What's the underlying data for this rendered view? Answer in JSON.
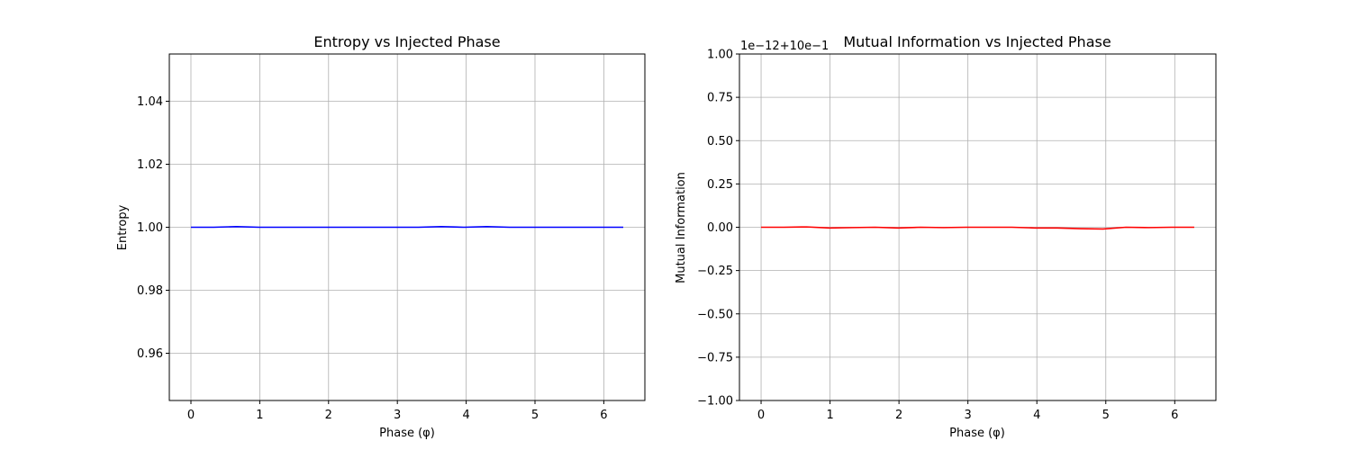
{
  "chart_data": [
    {
      "type": "line",
      "title": "Entropy vs Injected Phase",
      "xlabel": "Phase (φ)",
      "ylabel": "Entropy",
      "xlim": [
        -0.314,
        6.597
      ],
      "ylim": [
        0.945,
        1.055
      ],
      "xticks": [
        0,
        1,
        2,
        3,
        4,
        5,
        6
      ],
      "xtick_labels": [
        "0",
        "1",
        "2",
        "3",
        "4",
        "5",
        "6"
      ],
      "yticks": [
        0.96,
        0.98,
        1.0,
        1.02,
        1.04
      ],
      "ytick_labels": [
        "0.96",
        "0.98",
        "1.00",
        "1.02",
        "1.04"
      ],
      "offset_text": "",
      "grid": true,
      "series": [
        {
          "color": "#0000ff",
          "x": [
            0,
            0.331,
            0.661,
            0.992,
            1.323,
            1.653,
            1.984,
            2.315,
            2.645,
            2.976,
            3.307,
            3.638,
            3.968,
            4.299,
            4.63,
            4.96,
            5.291,
            5.622,
            5.952,
            6.283
          ],
          "y": [
            1.0,
            1.0,
            1.0002,
            1.0,
            1.0,
            1.0,
            1.0,
            1.0,
            1.0,
            1.0,
            1.0,
            1.0002,
            1.0,
            1.0002,
            1.0,
            1.0,
            1.0,
            1.0,
            1.0,
            1.0
          ]
        }
      ]
    },
    {
      "type": "line",
      "title": "Mutual Information vs Injected Phase",
      "xlabel": "Phase (φ)",
      "ylabel": "Mutual Information",
      "xlim": [
        -0.314,
        6.597
      ],
      "ylim": [
        -1.0,
        1.0
      ],
      "xticks": [
        0,
        1,
        2,
        3,
        4,
        5,
        6
      ],
      "xtick_labels": [
        "0",
        "1",
        "2",
        "3",
        "4",
        "5",
        "6"
      ],
      "yticks": [
        -1.0,
        -0.75,
        -0.5,
        -0.25,
        0.0,
        0.25,
        0.5,
        0.75,
        1.0
      ],
      "ytick_labels": [
        "−1.00",
        "−0.75",
        "−0.50",
        "−0.25",
        "0.00",
        "0.25",
        "0.50",
        "0.75",
        "1.00"
      ],
      "offset_text": "1e−12+10e−1",
      "grid": true,
      "series": [
        {
          "color": "#ff0000",
          "x": [
            0,
            0.331,
            0.661,
            0.992,
            1.323,
            1.653,
            1.984,
            2.315,
            2.645,
            2.976,
            3.307,
            3.638,
            3.968,
            4.299,
            4.63,
            4.96,
            5.291,
            5.622,
            5.952,
            6.283
          ],
          "y": [
            0.0,
            0.0,
            0.002,
            -0.004,
            -0.002,
            0.0,
            -0.004,
            0.0,
            -0.002,
            0.0,
            0.0,
            0.0,
            -0.004,
            -0.004,
            -0.008,
            -0.01,
            0.0,
            -0.002,
            0.0,
            0.0
          ]
        }
      ]
    }
  ]
}
